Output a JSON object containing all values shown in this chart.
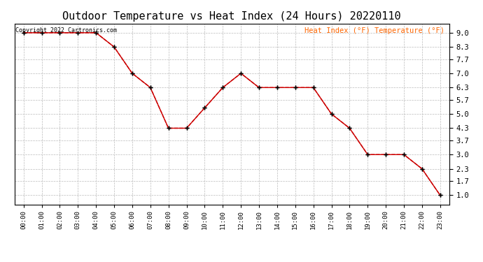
{
  "title": "Outdoor Temperature vs Heat Index (24 Hours) 20220110",
  "copyright_text": "Copyright 2022 Cartronics.com",
  "hours": [
    "00:00",
    "01:00",
    "02:00",
    "03:00",
    "04:00",
    "05:00",
    "06:00",
    "07:00",
    "08:00",
    "09:00",
    "10:00",
    "11:00",
    "12:00",
    "13:00",
    "14:00",
    "15:00",
    "16:00",
    "17:00",
    "18:00",
    "19:00",
    "20:00",
    "21:00",
    "22:00",
    "23:00"
  ],
  "temperature": [
    9.0,
    9.0,
    9.0,
    9.0,
    9.0,
    8.3,
    7.0,
    6.3,
    4.3,
    4.3,
    5.3,
    6.3,
    7.0,
    6.3,
    6.3,
    6.3,
    6.3,
    5.0,
    4.3,
    3.0,
    3.0,
    3.0,
    2.3,
    1.0
  ],
  "heat_index": [
    9.0,
    9.0,
    9.0,
    9.0,
    9.0,
    8.3,
    7.0,
    6.3,
    4.3,
    4.3,
    5.3,
    6.3,
    7.0,
    6.3,
    6.3,
    6.3,
    6.3,
    5.0,
    4.3,
    3.0,
    3.0,
    3.0,
    2.3,
    1.0
  ],
  "line_color": "#cc0000",
  "marker_color": "#000000",
  "background_color": "#ffffff",
  "grid_color": "#bbbbbb",
  "title_fontsize": 11,
  "legend_color": "#ff6600",
  "copyright_color": "#000000",
  "yticks": [
    1.0,
    1.7,
    2.3,
    3.0,
    3.7,
    4.3,
    5.0,
    5.7,
    6.3,
    7.0,
    7.7,
    8.3,
    9.0
  ],
  "ylim": [
    0.55,
    9.45
  ],
  "xlim": [
    -0.5,
    23.5
  ]
}
